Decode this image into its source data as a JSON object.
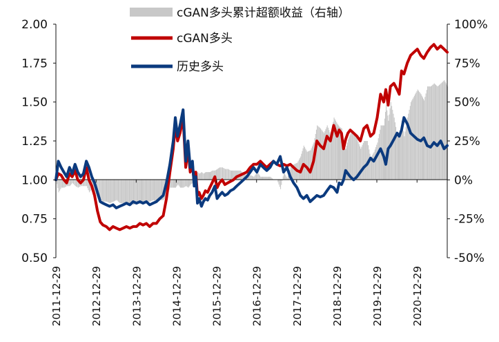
{
  "chart_data": {
    "type": "line",
    "title": "",
    "x_ticks": [
      "2011-12-29",
      "2012-12-29",
      "2013-12-29",
      "2014-12-29",
      "2015-12-29",
      "2016-12-29",
      "2017-12-29",
      "2018-12-29",
      "2019-12-29",
      "2020-12-29"
    ],
    "x_range": [
      "2011-12-29",
      "2021-09-30"
    ],
    "y_left": {
      "ticks": [
        "0.50",
        "0.75",
        "1.00",
        "1.25",
        "1.50",
        "1.75",
        "2.00"
      ],
      "range": [
        0.5,
        2.0
      ]
    },
    "y_right": {
      "ticks": [
        "-50%",
        "-25%",
        "0%",
        "25%",
        "50%",
        "75%",
        "100%"
      ],
      "range": [
        -50,
        100
      ],
      "unit": "%"
    },
    "grid": false,
    "legend_position": "top-center",
    "legend": [
      "cGAN多头累计超额收益（右轴）",
      "cGAN多头",
      "历史多头"
    ],
    "colors": {
      "excess": "#c8c8c8",
      "cgan": "#c00000",
      "history": "#0b3a7e"
    },
    "series": [
      {
        "name": "cGAN多头",
        "axis": "left",
        "x": [
          "2011-12-29",
          "2012-01-20",
          "2012-02-15",
          "2012-03-10",
          "2012-04-05",
          "2012-05-01",
          "2012-05-25",
          "2012-06-20",
          "2012-07-15",
          "2012-08-10",
          "2012-09-05",
          "2012-10-01",
          "2012-10-25",
          "2012-11-20",
          "2012-12-15",
          "2013-01-10",
          "2013-02-05",
          "2013-03-01",
          "2013-04-01",
          "2013-05-01",
          "2013-06-01",
          "2013-07-01",
          "2013-08-01",
          "2013-09-01",
          "2013-10-01",
          "2013-11-01",
          "2013-12-01",
          "2014-01-01",
          "2014-02-01",
          "2014-03-01",
          "2014-04-01",
          "2014-05-01",
          "2014-06-01",
          "2014-07-01",
          "2014-08-01",
          "2014-09-01",
          "2014-10-01",
          "2014-11-01",
          "2014-12-01",
          "2014-12-20",
          "2015-01-10",
          "2015-02-01",
          "2015-03-01",
          "2015-03-25",
          "2015-04-15",
          "2015-05-05",
          "2015-05-25",
          "2015-06-10",
          "2015-06-25",
          "2015-07-10",
          "2015-07-25",
          "2015-08-15",
          "2015-09-01",
          "2015-09-20",
          "2015-10-10",
          "2015-10-30",
          "2015-11-20",
          "2015-12-15",
          "2016-01-05",
          "2016-01-25",
          "2016-02-20",
          "2016-03-15",
          "2016-04-10",
          "2016-05-05",
          "2016-06-01",
          "2016-07-01",
          "2016-08-01",
          "2016-09-01",
          "2016-10-01",
          "2016-11-01",
          "2016-12-01",
          "2017-01-01",
          "2017-02-01",
          "2017-03-01",
          "2017-04-01",
          "2017-05-01",
          "2017-06-01",
          "2017-07-01",
          "2017-08-01",
          "2017-09-01",
          "2017-10-01",
          "2017-11-01",
          "2017-12-01",
          "2018-01-01",
          "2018-02-01",
          "2018-03-01",
          "2018-04-01",
          "2018-05-01",
          "2018-06-01",
          "2018-07-01",
          "2018-08-01",
          "2018-09-01",
          "2018-10-01",
          "2018-11-01",
          "2018-12-01",
          "2019-01-01",
          "2019-01-20",
          "2019-02-10",
          "2019-03-01",
          "2019-03-20",
          "2019-04-10",
          "2019-05-01",
          "2019-06-01",
          "2019-07-01",
          "2019-08-01",
          "2019-09-01",
          "2019-10-01",
          "2019-11-01",
          "2019-12-01",
          "2020-01-01",
          "2020-02-01",
          "2020-03-01",
          "2020-03-20",
          "2020-04-10",
          "2020-05-01",
          "2020-06-01",
          "2020-07-01",
          "2020-07-20",
          "2020-08-10",
          "2020-09-01",
          "2020-10-01",
          "2020-11-01",
          "2020-12-01",
          "2021-01-01",
          "2021-02-01",
          "2021-03-01",
          "2021-04-01",
          "2021-05-01",
          "2021-06-01",
          "2021-07-01",
          "2021-08-01",
          "2021-09-01",
          "2021-09-30"
        ],
        "values": [
          1.0,
          1.04,
          1.03,
          1.0,
          0.98,
          1.04,
          1.02,
          1.06,
          1.0,
          0.98,
          1.0,
          1.08,
          1.0,
          0.96,
          0.9,
          0.8,
          0.73,
          0.71,
          0.7,
          0.68,
          0.7,
          0.69,
          0.68,
          0.69,
          0.7,
          0.69,
          0.7,
          0.7,
          0.72,
          0.71,
          0.72,
          0.7,
          0.72,
          0.72,
          0.75,
          0.77,
          0.88,
          1.05,
          1.2,
          1.35,
          1.25,
          1.3,
          1.4,
          1.08,
          1.2,
          1.05,
          1.1,
          0.98,
          1.05,
          0.9,
          0.92,
          0.88,
          0.9,
          0.93,
          0.92,
          0.95,
          0.98,
          1.02,
          0.95,
          0.98,
          1.0,
          0.97,
          0.98,
          0.99,
          1.0,
          1.02,
          1.03,
          1.04,
          1.05,
          1.08,
          1.1,
          1.1,
          1.12,
          1.1,
          1.08,
          1.1,
          1.12,
          1.1,
          1.09,
          1.1,
          1.09,
          1.1,
          1.08,
          1.06,
          1.05,
          1.1,
          1.08,
          1.05,
          1.12,
          1.25,
          1.22,
          1.2,
          1.28,
          1.25,
          1.35,
          1.28,
          1.32,
          1.3,
          1.2,
          1.26,
          1.3,
          1.32,
          1.3,
          1.28,
          1.25,
          1.33,
          1.35,
          1.28,
          1.3,
          1.4,
          1.55,
          1.5,
          1.58,
          1.48,
          1.6,
          1.62,
          1.58,
          1.55,
          1.7,
          1.68,
          1.75,
          1.8,
          1.82,
          1.84,
          1.8,
          1.78,
          1.82,
          1.85,
          1.87,
          1.84,
          1.86,
          1.84,
          1.82
        ]
      },
      {
        "name": "历史多头",
        "axis": "left",
        "x": [
          "2011-12-29",
          "2012-01-20",
          "2012-02-15",
          "2012-03-10",
          "2012-04-05",
          "2012-05-01",
          "2012-05-25",
          "2012-06-20",
          "2012-07-15",
          "2012-08-10",
          "2012-09-05",
          "2012-10-01",
          "2012-10-25",
          "2012-11-20",
          "2012-12-15",
          "2013-01-10",
          "2013-02-05",
          "2013-03-01",
          "2013-04-01",
          "2013-05-01",
          "2013-06-01",
          "2013-07-01",
          "2013-08-01",
          "2013-09-01",
          "2013-10-01",
          "2013-11-01",
          "2013-12-01",
          "2014-01-01",
          "2014-02-01",
          "2014-03-01",
          "2014-04-01",
          "2014-05-01",
          "2014-06-01",
          "2014-07-01",
          "2014-08-01",
          "2014-09-01",
          "2014-10-01",
          "2014-11-01",
          "2014-12-01",
          "2014-12-20",
          "2015-01-10",
          "2015-02-01",
          "2015-03-01",
          "2015-03-25",
          "2015-04-15",
          "2015-05-05",
          "2015-05-25",
          "2015-06-10",
          "2015-06-25",
          "2015-07-10",
          "2015-07-25",
          "2015-08-15",
          "2015-09-01",
          "2015-09-20",
          "2015-10-10",
          "2015-10-30",
          "2015-11-20",
          "2015-12-15",
          "2016-01-05",
          "2016-01-25",
          "2016-02-20",
          "2016-03-15",
          "2016-04-10",
          "2016-05-05",
          "2016-06-01",
          "2016-07-01",
          "2016-08-01",
          "2016-09-01",
          "2016-10-01",
          "2016-11-01",
          "2016-12-01",
          "2017-01-01",
          "2017-02-01",
          "2017-03-01",
          "2017-04-01",
          "2017-05-01",
          "2017-06-01",
          "2017-07-01",
          "2017-08-01",
          "2017-09-01",
          "2017-10-01",
          "2017-11-01",
          "2017-12-01",
          "2018-01-01",
          "2018-02-01",
          "2018-03-01",
          "2018-04-01",
          "2018-05-01",
          "2018-06-01",
          "2018-07-01",
          "2018-08-01",
          "2018-09-01",
          "2018-10-01",
          "2018-11-01",
          "2018-12-01",
          "2019-01-01",
          "2019-01-20",
          "2019-02-10",
          "2019-03-01",
          "2019-03-20",
          "2019-04-10",
          "2019-05-01",
          "2019-06-01",
          "2019-07-01",
          "2019-08-01",
          "2019-09-01",
          "2019-10-01",
          "2019-11-01",
          "2019-12-01",
          "2020-01-01",
          "2020-02-01",
          "2020-03-01",
          "2020-03-20",
          "2020-04-10",
          "2020-05-01",
          "2020-06-01",
          "2020-07-01",
          "2020-07-20",
          "2020-08-10",
          "2020-09-01",
          "2020-10-01",
          "2020-11-01",
          "2020-12-01",
          "2021-01-01",
          "2021-02-01",
          "2021-03-01",
          "2021-04-01",
          "2021-05-01",
          "2021-06-01",
          "2021-07-01",
          "2021-08-01",
          "2021-09-01",
          "2021-09-30"
        ],
        "values": [
          1.0,
          1.12,
          1.08,
          1.05,
          1.02,
          1.08,
          1.04,
          1.1,
          1.05,
          1.02,
          1.04,
          1.12,
          1.08,
          1.02,
          0.98,
          0.92,
          0.86,
          0.85,
          0.84,
          0.83,
          0.84,
          0.82,
          0.83,
          0.84,
          0.85,
          0.84,
          0.86,
          0.85,
          0.86,
          0.85,
          0.86,
          0.84,
          0.85,
          0.86,
          0.88,
          0.9,
          0.98,
          1.1,
          1.25,
          1.4,
          1.28,
          1.35,
          1.45,
          1.12,
          1.25,
          1.08,
          1.12,
          0.96,
          1.02,
          0.85,
          0.88,
          0.83,
          0.86,
          0.88,
          0.87,
          0.9,
          0.92,
          0.96,
          0.88,
          0.9,
          0.92,
          0.9,
          0.91,
          0.93,
          0.94,
          0.96,
          0.98,
          1.0,
          1.02,
          1.05,
          1.08,
          1.05,
          1.1,
          1.08,
          1.06,
          1.08,
          1.12,
          1.1,
          1.15,
          1.05,
          1.08,
          1.02,
          0.98,
          0.95,
          0.9,
          0.88,
          0.9,
          0.86,
          0.88,
          0.9,
          0.89,
          0.9,
          0.93,
          0.96,
          0.95,
          0.92,
          0.98,
          0.97,
          1.0,
          1.06,
          1.04,
          1.02,
          1.0,
          1.02,
          1.05,
          1.08,
          1.1,
          1.14,
          1.12,
          1.16,
          1.2,
          1.15,
          1.1,
          1.2,
          1.22,
          1.26,
          1.3,
          1.28,
          1.32,
          1.4,
          1.36,
          1.3,
          1.28,
          1.26,
          1.25,
          1.27,
          1.22,
          1.21,
          1.24,
          1.22,
          1.25,
          1.2,
          1.22
        ]
      },
      {
        "name": "cGAN多头累计超额收益（右轴）",
        "axis": "right",
        "unit": "%",
        "x": [
          "2011-12-29",
          "2012-01-20",
          "2012-02-15",
          "2012-03-10",
          "2012-04-05",
          "2012-05-01",
          "2012-05-25",
          "2012-06-20",
          "2012-07-15",
          "2012-08-10",
          "2012-09-05",
          "2012-10-01",
          "2012-10-25",
          "2012-11-20",
          "2012-12-15",
          "2013-01-10",
          "2013-02-05",
          "2013-03-01",
          "2013-04-01",
          "2013-05-01",
          "2013-06-01",
          "2013-07-01",
          "2013-08-01",
          "2013-09-01",
          "2013-10-01",
          "2013-11-01",
          "2013-12-01",
          "2014-01-01",
          "2014-02-01",
          "2014-03-01",
          "2014-04-01",
          "2014-05-01",
          "2014-06-01",
          "2014-07-01",
          "2014-08-01",
          "2014-09-01",
          "2014-10-01",
          "2014-11-01",
          "2014-12-01",
          "2014-12-20",
          "2015-01-10",
          "2015-02-01",
          "2015-03-01",
          "2015-03-25",
          "2015-04-15",
          "2015-05-05",
          "2015-05-25",
          "2015-06-10",
          "2015-06-25",
          "2015-07-10",
          "2015-07-25",
          "2015-08-15",
          "2015-09-01",
          "2015-09-20",
          "2015-10-10",
          "2015-10-30",
          "2015-11-20",
          "2015-12-15",
          "2016-01-05",
          "2016-01-25",
          "2016-02-20",
          "2016-03-15",
          "2016-04-10",
          "2016-05-05",
          "2016-06-01",
          "2016-07-01",
          "2016-08-01",
          "2016-09-01",
          "2016-10-01",
          "2016-11-01",
          "2016-12-01",
          "2017-01-01",
          "2017-02-01",
          "2017-03-01",
          "2017-04-01",
          "2017-05-01",
          "2017-06-01",
          "2017-07-01",
          "2017-08-01",
          "2017-09-01",
          "2017-10-01",
          "2017-11-01",
          "2017-12-01",
          "2018-01-01",
          "2018-02-01",
          "2018-03-01",
          "2018-04-01",
          "2018-05-01",
          "2018-06-01",
          "2018-07-01",
          "2018-08-01",
          "2018-09-01",
          "2018-10-01",
          "2018-11-01",
          "2018-12-01",
          "2019-01-01",
          "2019-01-20",
          "2019-02-10",
          "2019-03-01",
          "2019-03-20",
          "2019-04-10",
          "2019-05-01",
          "2019-06-01",
          "2019-07-01",
          "2019-08-01",
          "2019-09-01",
          "2019-10-01",
          "2019-11-01",
          "2019-12-01",
          "2020-01-01",
          "2020-02-01",
          "2020-03-01",
          "2020-03-20",
          "2020-04-10",
          "2020-05-01",
          "2020-06-01",
          "2020-07-01",
          "2020-07-20",
          "2020-08-10",
          "2020-09-01",
          "2020-10-01",
          "2020-11-01",
          "2020-12-01",
          "2021-01-01",
          "2021-02-01",
          "2021-03-01",
          "2021-04-01",
          "2021-05-01",
          "2021-06-01",
          "2021-07-01",
          "2021-08-01",
          "2021-09-01",
          "2021-09-30"
        ],
        "values": [
          0,
          -8,
          -5,
          -5,
          -4,
          -4,
          -2,
          -4,
          -5,
          -4,
          -4,
          -4,
          -8,
          -6,
          -8,
          -12,
          -13,
          -14,
          -14,
          -15,
          -14,
          -13,
          -15,
          -15,
          -15,
          -15,
          -16,
          -15,
          -14,
          -14,
          -14,
          -14,
          -13,
          -14,
          -13,
          -13,
          -10,
          -5,
          -5,
          -5,
          -3,
          -5,
          -5,
          -4,
          -5,
          -3,
          -2,
          2,
          3,
          5,
          4,
          5,
          4,
          5,
          5,
          5,
          6,
          6,
          7,
          8,
          8,
          7,
          7,
          6,
          6,
          6,
          6,
          4,
          3,
          3,
          2,
          5,
          2,
          2,
          2,
          2,
          0,
          0,
          -6,
          5,
          1,
          8,
          10,
          11,
          15,
          22,
          18,
          19,
          24,
          35,
          33,
          30,
          35,
          29,
          40,
          36,
          34,
          33,
          20,
          20,
          26,
          30,
          30,
          26,
          20,
          25,
          25,
          14,
          18,
          24,
          35,
          35,
          48,
          38,
          50,
          40,
          28,
          27,
          38,
          28,
          40,
          50,
          54,
          58,
          55,
          51,
          60,
          60,
          62,
          60,
          62,
          64,
          60
        ]
      }
    ]
  }
}
